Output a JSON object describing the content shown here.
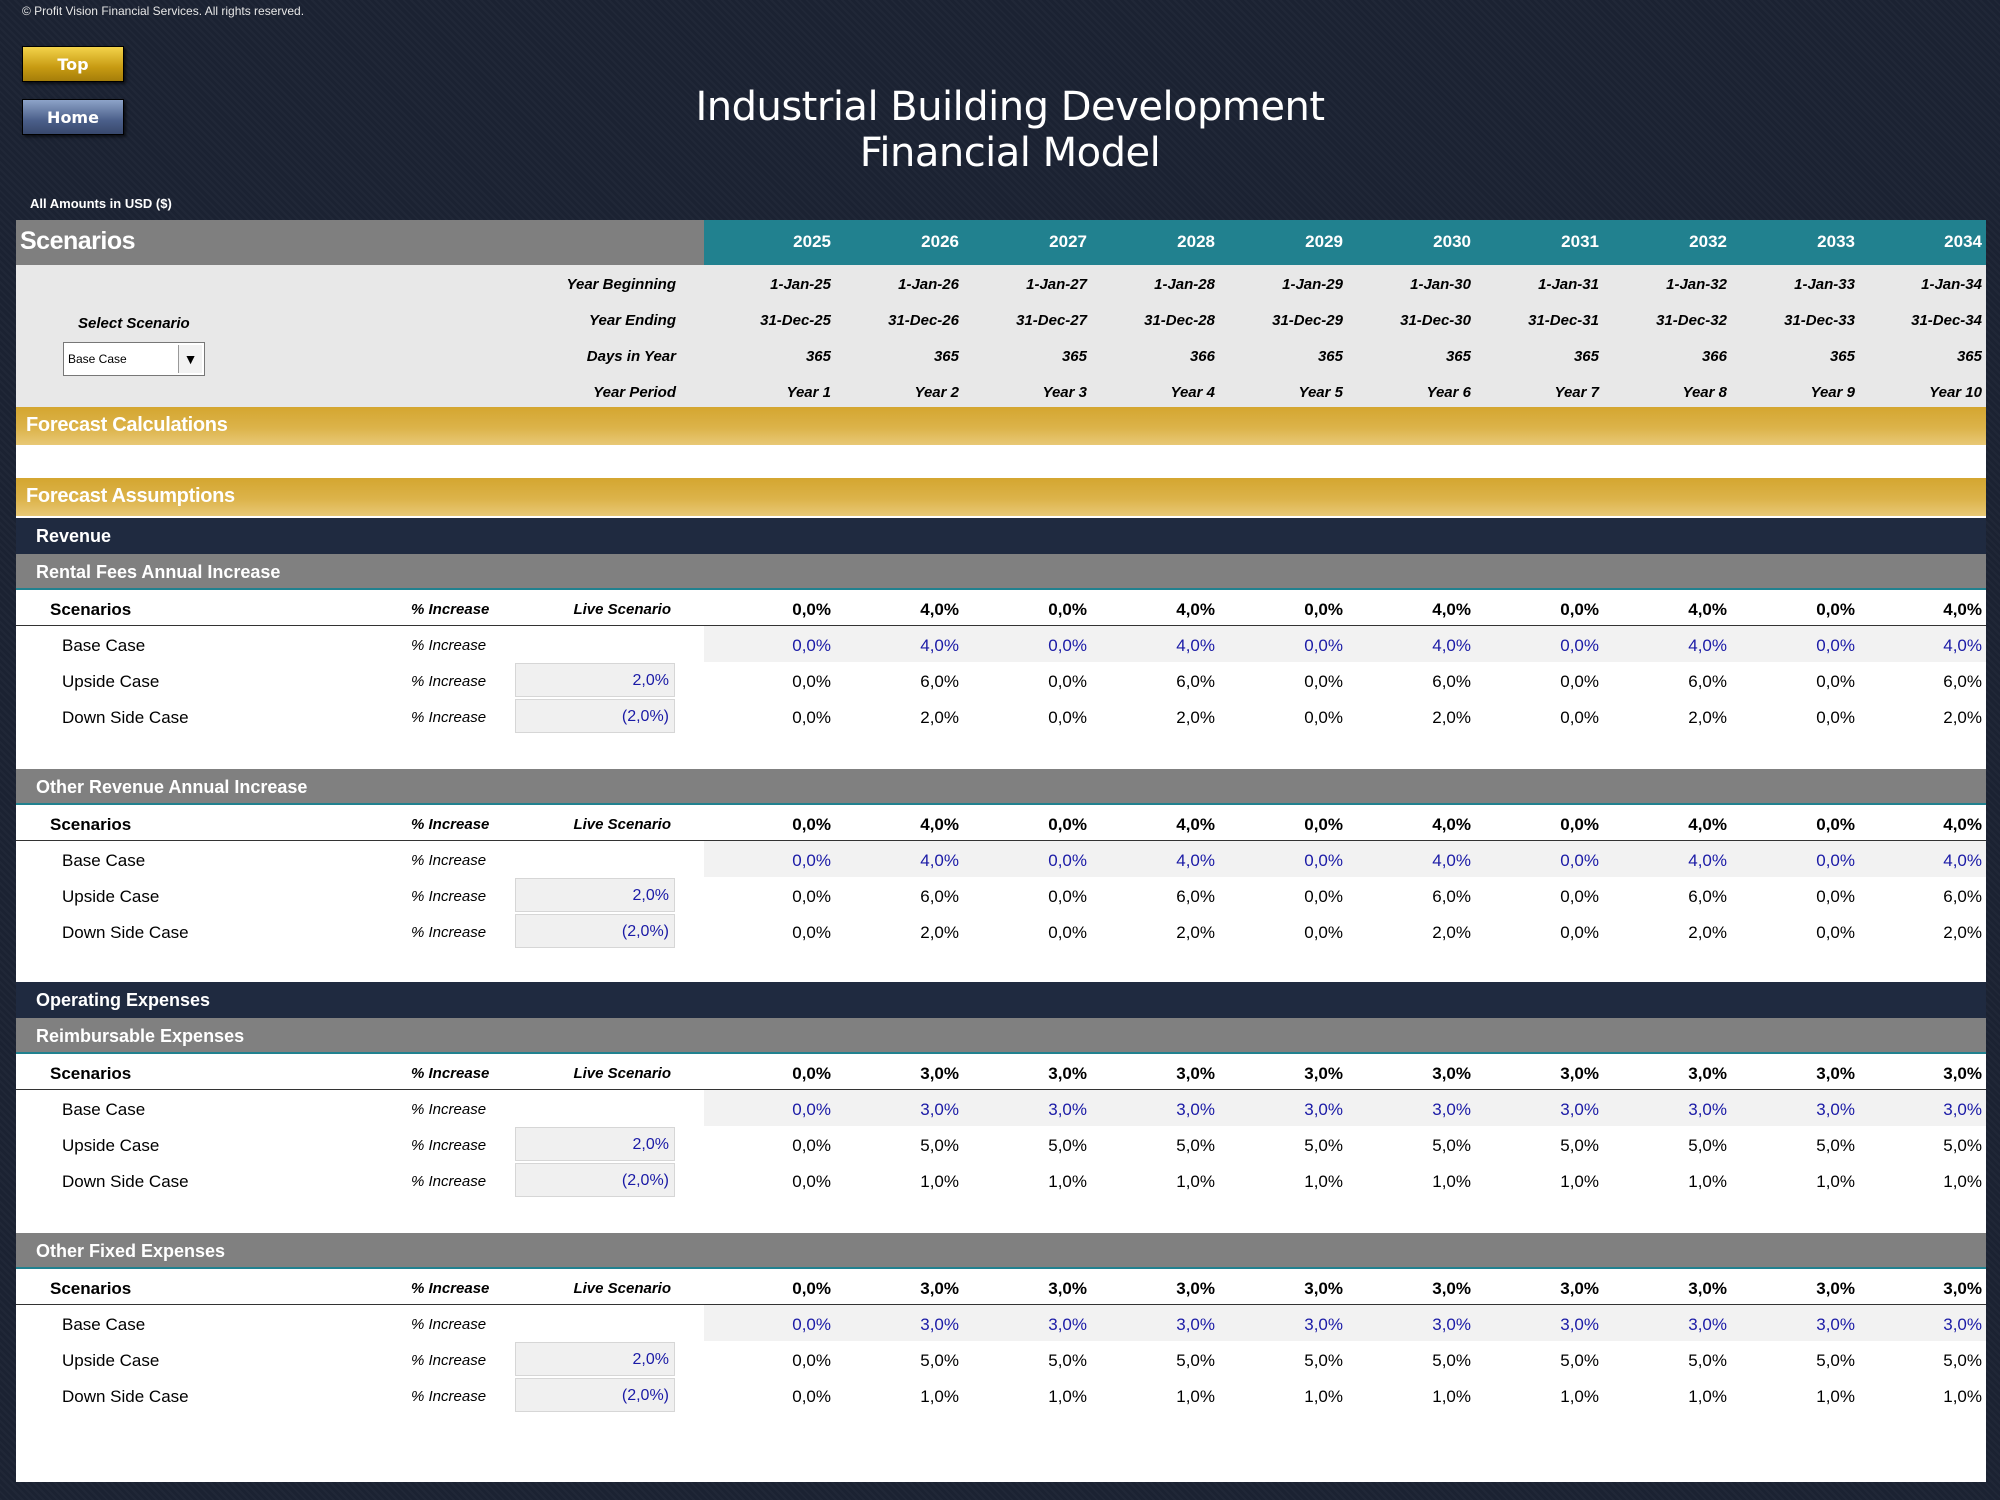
{
  "copyright": "© Profit Vision Financial Services. All rights reserved.",
  "nav": {
    "top_label": "Top",
    "home_label": "Home"
  },
  "title": "Industrial Building Development Financial Model",
  "amounts": {
    "label": "All Amounts in",
    "currency": "USD ($)"
  },
  "header": {
    "scenarios_title": "Scenarios",
    "select_label": "Select Scenario",
    "selected_scenario": "Base Case",
    "row_labels": {
      "begin": "Year Beginning",
      "end": "Year Ending",
      "days": "Days in Year",
      "period": "Year Period"
    },
    "years": [
      "2025",
      "2026",
      "2027",
      "2028",
      "2029",
      "2030",
      "2031",
      "2032",
      "2033",
      "2034"
    ],
    "begin": [
      "1-Jan-25",
      "1-Jan-26",
      "1-Jan-27",
      "1-Jan-28",
      "1-Jan-29",
      "1-Jan-30",
      "1-Jan-31",
      "1-Jan-32",
      "1-Jan-33",
      "1-Jan-34"
    ],
    "end": [
      "31-Dec-25",
      "31-Dec-26",
      "31-Dec-27",
      "31-Dec-28",
      "31-Dec-29",
      "31-Dec-30",
      "31-Dec-31",
      "31-Dec-32",
      "31-Dec-33",
      "31-Dec-34"
    ],
    "days": [
      "365",
      "365",
      "365",
      "366",
      "365",
      "365",
      "365",
      "366",
      "365",
      "365"
    ],
    "period": [
      "Year 1",
      "Year 2",
      "Year 3",
      "Year 4",
      "Year 5",
      "Year 6",
      "Year 7",
      "Year 8",
      "Year 9",
      "Year 10"
    ]
  },
  "bands": {
    "forecast_calculations": "Forecast Calculations",
    "forecast_assumptions": "Forecast Assumptions",
    "revenue": "Revenue",
    "operating_expenses": "Operating Expenses"
  },
  "labels": {
    "scenarios": "Scenarios",
    "increase": "% Increase",
    "live_scenario": "Live Scenario",
    "base_case": "Base Case",
    "upside_case": "Upside Case",
    "downside_case": "Down Side Case"
  },
  "sections": [
    {
      "title": "Rental Fees Annual Increase",
      "live": [
        "0,0%",
        "4,0%",
        "0,0%",
        "4,0%",
        "0,0%",
        "4,0%",
        "0,0%",
        "4,0%",
        "0,0%",
        "4,0%"
      ],
      "base": [
        "0,0%",
        "4,0%",
        "0,0%",
        "4,0%",
        "0,0%",
        "4,0%",
        "0,0%",
        "4,0%",
        "0,0%",
        "4,0%"
      ],
      "upside_input": "2,0%",
      "upside": [
        "0,0%",
        "6,0%",
        "0,0%",
        "6,0%",
        "0,0%",
        "6,0%",
        "0,0%",
        "6,0%",
        "0,0%",
        "6,0%"
      ],
      "downside_input": "(2,0%)",
      "downside": [
        "0,0%",
        "2,0%",
        "0,0%",
        "2,0%",
        "0,0%",
        "2,0%",
        "0,0%",
        "2,0%",
        "0,0%",
        "2,0%"
      ]
    },
    {
      "title": "Other Revenue Annual Increase",
      "live": [
        "0,0%",
        "4,0%",
        "0,0%",
        "4,0%",
        "0,0%",
        "4,0%",
        "0,0%",
        "4,0%",
        "0,0%",
        "4,0%"
      ],
      "base": [
        "0,0%",
        "4,0%",
        "0,0%",
        "4,0%",
        "0,0%",
        "4,0%",
        "0,0%",
        "4,0%",
        "0,0%",
        "4,0%"
      ],
      "upside_input": "2,0%",
      "upside": [
        "0,0%",
        "6,0%",
        "0,0%",
        "6,0%",
        "0,0%",
        "6,0%",
        "0,0%",
        "6,0%",
        "0,0%",
        "6,0%"
      ],
      "downside_input": "(2,0%)",
      "downside": [
        "0,0%",
        "2,0%",
        "0,0%",
        "2,0%",
        "0,0%",
        "2,0%",
        "0,0%",
        "2,0%",
        "0,0%",
        "2,0%"
      ]
    },
    {
      "title": "Reimbursable Expenses",
      "live": [
        "0,0%",
        "3,0%",
        "3,0%",
        "3,0%",
        "3,0%",
        "3,0%",
        "3,0%",
        "3,0%",
        "3,0%",
        "3,0%"
      ],
      "base": [
        "0,0%",
        "3,0%",
        "3,0%",
        "3,0%",
        "3,0%",
        "3,0%",
        "3,0%",
        "3,0%",
        "3,0%",
        "3,0%"
      ],
      "upside_input": "2,0%",
      "upside": [
        "0,0%",
        "5,0%",
        "5,0%",
        "5,0%",
        "5,0%",
        "5,0%",
        "5,0%",
        "5,0%",
        "5,0%",
        "5,0%"
      ],
      "downside_input": "(2,0%)",
      "downside": [
        "0,0%",
        "1,0%",
        "1,0%",
        "1,0%",
        "1,0%",
        "1,0%",
        "1,0%",
        "1,0%",
        "1,0%",
        "1,0%"
      ]
    },
    {
      "title": "Other Fixed Expenses",
      "live": [
        "0,0%",
        "3,0%",
        "3,0%",
        "3,0%",
        "3,0%",
        "3,0%",
        "3,0%",
        "3,0%",
        "3,0%",
        "3,0%"
      ],
      "base": [
        "0,0%",
        "3,0%",
        "3,0%",
        "3,0%",
        "3,0%",
        "3,0%",
        "3,0%",
        "3,0%",
        "3,0%",
        "3,0%"
      ],
      "upside_input": "2,0%",
      "upside": [
        "0,0%",
        "5,0%",
        "5,0%",
        "5,0%",
        "5,0%",
        "5,0%",
        "5,0%",
        "5,0%",
        "5,0%",
        "5,0%"
      ],
      "downside_input": "(2,0%)",
      "downside": [
        "0,0%",
        "1,0%",
        "1,0%",
        "1,0%",
        "1,0%",
        "1,0%",
        "1,0%",
        "1,0%",
        "1,0%",
        "1,0%"
      ]
    }
  ],
  "colors": {
    "teal": "#21818f",
    "gold": "#d4a630",
    "navy": "#1f2a40",
    "grey": "#808080",
    "input_blue": "#1a1aa6"
  }
}
